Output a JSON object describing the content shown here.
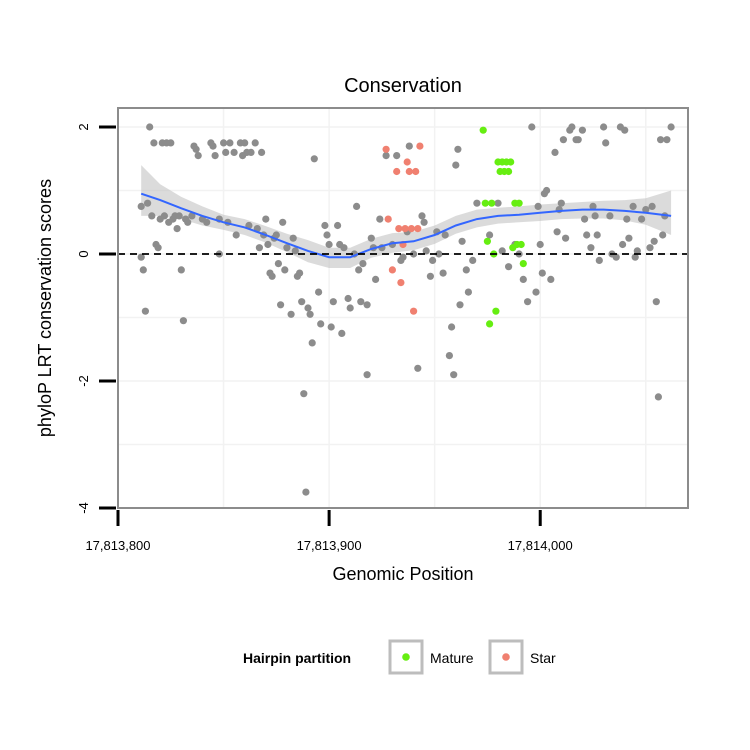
{
  "chart_data": {
    "type": "scatter",
    "title": "Conservation",
    "xlabel": "Genomic Position",
    "ylabel": "phyloP LRT conservation scores",
    "xlim": [
      17813800,
      17814070
    ],
    "ylim": [
      -4,
      2.3
    ],
    "x_ticks": [
      {
        "value": 17813800,
        "label": "17,813,800"
      },
      {
        "value": 17813900,
        "label": "17,813,900"
      },
      {
        "value": 17814000,
        "label": "17,814,000"
      }
    ],
    "y_ticks": [
      {
        "value": 2,
        "label": "2"
      },
      {
        "value": 0,
        "label": "0"
      },
      {
        "value": -2,
        "label": "-2"
      },
      {
        "value": -4,
        "label": "-4"
      }
    ],
    "reference_line": {
      "y": 0,
      "style": "dashed",
      "color": "#000000"
    },
    "grid": true,
    "legend": {
      "title": "Hairpin partition",
      "position": "bottom",
      "entries": [
        {
          "label": "Mature",
          "color": "#66ee11"
        },
        {
          "label": "Star",
          "color": "#f08070"
        }
      ]
    },
    "colors": {
      "background": "#e0e0e0",
      "other": "#8c8c8c",
      "smooth_line": "#3366ff",
      "ribbon": "#bdbdbd"
    },
    "series": [
      {
        "group": "other",
        "color": "#8c8c8c",
        "points": [
          [
            17813811,
            0.75
          ],
          [
            17813811,
            -0.05
          ],
          [
            17813812,
            -0.25
          ],
          [
            17813813,
            -0.9
          ],
          [
            17813814,
            0.8
          ],
          [
            17813815,
            2.0
          ],
          [
            17813816,
            0.6
          ],
          [
            17813817,
            1.75
          ],
          [
            17813818,
            0.15
          ],
          [
            17813819,
            0.1
          ],
          [
            17813820,
            0.55
          ],
          [
            17813821,
            1.75
          ],
          [
            17813822,
            0.6
          ],
          [
            17813823,
            1.75
          ],
          [
            17813824,
            0.5
          ],
          [
            17813825,
            1.75
          ],
          [
            17813826,
            0.55
          ],
          [
            17813827,
            0.6
          ],
          [
            17813828,
            0.4
          ],
          [
            17813829,
            0.6
          ],
          [
            17813830,
            -0.25
          ],
          [
            17813831,
            -1.05
          ],
          [
            17813832,
            0.55
          ],
          [
            17813833,
            0.5
          ],
          [
            17813835,
            0.6
          ],
          [
            17813836,
            1.7
          ],
          [
            17813837,
            1.65
          ],
          [
            17813838,
            1.55
          ],
          [
            17813840,
            0.55
          ],
          [
            17813842,
            0.5
          ],
          [
            17813844,
            1.75
          ],
          [
            17813845,
            1.7
          ],
          [
            17813846,
            1.55
          ],
          [
            17813848,
            0.55
          ],
          [
            17813848,
            0.0
          ],
          [
            17813850,
            1.75
          ],
          [
            17813851,
            1.6
          ],
          [
            17813852,
            0.5
          ],
          [
            17813853,
            1.75
          ],
          [
            17813855,
            1.6
          ],
          [
            17813856,
            0.3
          ],
          [
            17813858,
            1.75
          ],
          [
            17813859,
            1.55
          ],
          [
            17813860,
            1.75
          ],
          [
            17813861,
            1.6
          ],
          [
            17813862,
            0.45
          ],
          [
            17813863,
            1.6
          ],
          [
            17813865,
            1.75
          ],
          [
            17813866,
            0.4
          ],
          [
            17813867,
            0.1
          ],
          [
            17813868,
            1.6
          ],
          [
            17813869,
            0.3
          ],
          [
            17813870,
            0.55
          ],
          [
            17813871,
            0.15
          ],
          [
            17813872,
            -0.3
          ],
          [
            17813873,
            -0.35
          ],
          [
            17813874,
            0.25
          ],
          [
            17813875,
            0.3
          ],
          [
            17813876,
            -0.15
          ],
          [
            17813877,
            -0.8
          ],
          [
            17813878,
            0.5
          ],
          [
            17813879,
            -0.25
          ],
          [
            17813880,
            0.1
          ],
          [
            17813882,
            -0.95
          ],
          [
            17813883,
            0.25
          ],
          [
            17813884,
            0.05
          ],
          [
            17813885,
            -0.35
          ],
          [
            17813886,
            -0.3
          ],
          [
            17813887,
            -0.75
          ],
          [
            17813888,
            -2.2
          ],
          [
            17813889,
            -3.75
          ],
          [
            17813890,
            -0.85
          ],
          [
            17813891,
            -0.95
          ],
          [
            17813892,
            -1.4
          ],
          [
            17813893,
            1.5
          ],
          [
            17813895,
            -0.6
          ],
          [
            17813896,
            -1.1
          ],
          [
            17813898,
            0.45
          ],
          [
            17813899,
            0.3
          ],
          [
            17813900,
            0.15
          ],
          [
            17813901,
            -1.15
          ],
          [
            17813902,
            -0.75
          ],
          [
            17813904,
            0.45
          ],
          [
            17813905,
            0.15
          ],
          [
            17813906,
            -1.25
          ],
          [
            17813907,
            0.1
          ],
          [
            17813909,
            -0.7
          ],
          [
            17813910,
            -0.85
          ],
          [
            17813912,
            0.0
          ],
          [
            17813913,
            0.75
          ],
          [
            17813914,
            -0.25
          ],
          [
            17813915,
            -0.75
          ],
          [
            17813916,
            -0.15
          ],
          [
            17813918,
            -1.9
          ],
          [
            17813918,
            -0.8
          ],
          [
            17813920,
            0.25
          ],
          [
            17813921,
            0.1
          ],
          [
            17813922,
            -0.4
          ],
          [
            17813924,
            0.55
          ],
          [
            17813925,
            0.1
          ],
          [
            17813927,
            1.55
          ],
          [
            17813930,
            0.15
          ],
          [
            17813932,
            1.55
          ],
          [
            17813934,
            -0.1
          ],
          [
            17813935,
            -0.05
          ],
          [
            17813937,
            0.35
          ],
          [
            17813938,
            1.7
          ],
          [
            17813940,
            0.0
          ],
          [
            17813942,
            -1.8
          ],
          [
            17813944,
            0.6
          ],
          [
            17813945,
            0.5
          ],
          [
            17813946,
            0.05
          ],
          [
            17813948,
            -0.35
          ],
          [
            17813949,
            -0.1
          ],
          [
            17813951,
            0.35
          ],
          [
            17813952,
            0.0
          ],
          [
            17813954,
            -0.3
          ],
          [
            17813955,
            0.3
          ],
          [
            17813957,
            -1.6
          ],
          [
            17813958,
            -1.15
          ],
          [
            17813959,
            -1.9
          ],
          [
            17813960,
            1.4
          ],
          [
            17813961,
            1.65
          ],
          [
            17813962,
            -0.8
          ],
          [
            17813963,
            0.2
          ],
          [
            17813965,
            -0.25
          ],
          [
            17813966,
            -0.6
          ],
          [
            17813968,
            -0.1
          ],
          [
            17813970,
            0.8
          ],
          [
            17813976,
            0.3
          ],
          [
            17813980,
            0.8
          ],
          [
            17813982,
            0.05
          ],
          [
            17813985,
            -0.2
          ],
          [
            17813988,
            0.15
          ],
          [
            17813990,
            0.0
          ],
          [
            17813992,
            -0.4
          ],
          [
            17813994,
            -0.75
          ],
          [
            17813996,
            2.0
          ],
          [
            17813998,
            -0.6
          ],
          [
            17813999,
            0.75
          ],
          [
            17814000,
            0.15
          ],
          [
            17814001,
            -0.3
          ],
          [
            17814002,
            0.95
          ],
          [
            17814003,
            1.0
          ],
          [
            17814005,
            -0.4
          ],
          [
            17814007,
            1.6
          ],
          [
            17814008,
            0.35
          ],
          [
            17814009,
            0.7
          ],
          [
            17814010,
            0.8
          ],
          [
            17814011,
            1.8
          ],
          [
            17814012,
            0.25
          ],
          [
            17814014,
            1.95
          ],
          [
            17814015,
            2.0
          ],
          [
            17814017,
            1.8
          ],
          [
            17814018,
            1.8
          ],
          [
            17814020,
            1.95
          ],
          [
            17814021,
            0.55
          ],
          [
            17814022,
            0.3
          ],
          [
            17814024,
            0.1
          ],
          [
            17814025,
            0.75
          ],
          [
            17814026,
            0.6
          ],
          [
            17814027,
            0.3
          ],
          [
            17814028,
            -0.1
          ],
          [
            17814030,
            2.0
          ],
          [
            17814031,
            1.75
          ],
          [
            17814033,
            0.6
          ],
          [
            17814034,
            0.0
          ],
          [
            17814036,
            -0.05
          ],
          [
            17814038,
            2.0
          ],
          [
            17814039,
            0.15
          ],
          [
            17814040,
            1.95
          ],
          [
            17814041,
            0.55
          ],
          [
            17814042,
            0.25
          ],
          [
            17814044,
            0.75
          ],
          [
            17814045,
            -0.05
          ],
          [
            17814046,
            0.05
          ],
          [
            17814048,
            0.55
          ],
          [
            17814050,
            0.7
          ],
          [
            17814052,
            0.1
          ],
          [
            17814053,
            0.75
          ],
          [
            17814054,
            0.2
          ],
          [
            17814055,
            -0.75
          ],
          [
            17814056,
            -2.25
          ],
          [
            17814057,
            1.8
          ],
          [
            17814058,
            0.3
          ],
          [
            17814059,
            0.6
          ],
          [
            17814060,
            1.8
          ],
          [
            17814062,
            2.0
          ]
        ]
      },
      {
        "group": "Mature",
        "color": "#66ee11",
        "points": [
          [
            17813973,
            1.95
          ],
          [
            17813974,
            0.8
          ],
          [
            17813975,
            0.2
          ],
          [
            17813976,
            -1.1
          ],
          [
            17813977,
            0.8
          ],
          [
            17813978,
            0.0
          ],
          [
            17813979,
            -0.9
          ],
          [
            17813980,
            1.45
          ],
          [
            17813981,
            1.3
          ],
          [
            17813982,
            1.45
          ],
          [
            17813983,
            1.3
          ],
          [
            17813984,
            1.45
          ],
          [
            17813985,
            1.3
          ],
          [
            17813986,
            1.45
          ],
          [
            17813987,
            0.1
          ],
          [
            17813988,
            0.8
          ],
          [
            17813989,
            0.15
          ],
          [
            17813990,
            0.8
          ],
          [
            17813991,
            0.15
          ],
          [
            17813992,
            -0.15
          ]
        ]
      },
      {
        "group": "Star",
        "color": "#f08070",
        "points": [
          [
            17813927,
            1.65
          ],
          [
            17813928,
            0.55
          ],
          [
            17813930,
            -0.25
          ],
          [
            17813932,
            1.3
          ],
          [
            17813933,
            0.4
          ],
          [
            17813934,
            -0.45
          ],
          [
            17813935,
            0.15
          ],
          [
            17813936,
            0.4
          ],
          [
            17813937,
            1.45
          ],
          [
            17813938,
            1.3
          ],
          [
            17813939,
            0.4
          ],
          [
            17813940,
            -0.9
          ],
          [
            17813941,
            1.3
          ],
          [
            17813942,
            0.4
          ],
          [
            17813943,
            1.7
          ]
        ]
      }
    ],
    "smooth_fit": [
      [
        17813811,
        0.95
      ],
      [
        17813820,
        0.85
      ],
      [
        17813830,
        0.72
      ],
      [
        17813840,
        0.6
      ],
      [
        17813850,
        0.5
      ],
      [
        17813860,
        0.42
      ],
      [
        17813870,
        0.3
      ],
      [
        17813880,
        0.17
      ],
      [
        17813890,
        0.05
      ],
      [
        17813900,
        -0.05
      ],
      [
        17813910,
        -0.05
      ],
      [
        17813920,
        0.08
      ],
      [
        17813930,
        0.17
      ],
      [
        17813940,
        0.2
      ],
      [
        17813950,
        0.3
      ],
      [
        17813960,
        0.45
      ],
      [
        17813970,
        0.55
      ],
      [
        17813980,
        0.6
      ],
      [
        17813990,
        0.62
      ],
      [
        17814000,
        0.65
      ],
      [
        17814010,
        0.68
      ],
      [
        17814020,
        0.7
      ],
      [
        17814030,
        0.7
      ],
      [
        17814040,
        0.68
      ],
      [
        17814050,
        0.65
      ],
      [
        17814062,
        0.6
      ]
    ],
    "smooth_band": [
      [
        17813811,
        0.6,
        1.4
      ],
      [
        17813820,
        0.6,
        1.1
      ],
      [
        17813830,
        0.55,
        0.9
      ],
      [
        17813840,
        0.45,
        0.75
      ],
      [
        17813850,
        0.38,
        0.62
      ],
      [
        17813860,
        0.3,
        0.55
      ],
      [
        17813870,
        0.18,
        0.44
      ],
      [
        17813880,
        0.03,
        0.32
      ],
      [
        17813890,
        -0.13,
        0.22
      ],
      [
        17813900,
        -0.22,
        0.1
      ],
      [
        17813910,
        -0.22,
        0.1
      ],
      [
        17813920,
        -0.06,
        0.24
      ],
      [
        17813930,
        0.02,
        0.33
      ],
      [
        17813940,
        0.06,
        0.35
      ],
      [
        17813950,
        0.16,
        0.45
      ],
      [
        17813960,
        0.32,
        0.6
      ],
      [
        17813970,
        0.42,
        0.7
      ],
      [
        17813980,
        0.48,
        0.73
      ],
      [
        17813990,
        0.5,
        0.75
      ],
      [
        17814000,
        0.52,
        0.78
      ],
      [
        17814010,
        0.55,
        0.8
      ],
      [
        17814020,
        0.56,
        0.82
      ],
      [
        17814030,
        0.56,
        0.84
      ],
      [
        17814040,
        0.53,
        0.85
      ],
      [
        17814050,
        0.46,
        0.88
      ],
      [
        17814062,
        0.3,
        1.0
      ]
    ]
  }
}
